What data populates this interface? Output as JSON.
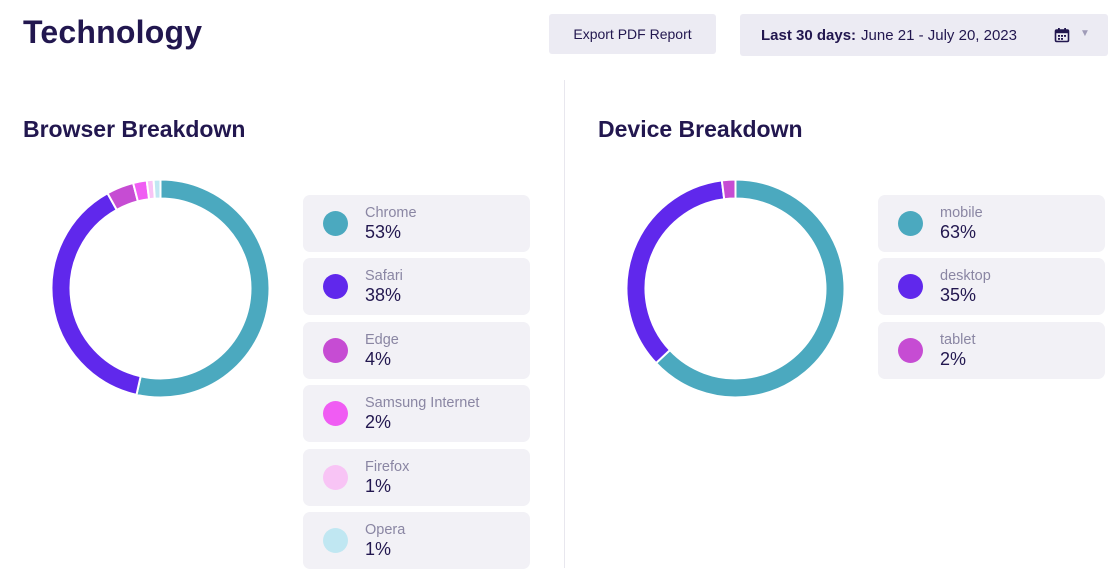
{
  "page": {
    "title": "Technology"
  },
  "toolbar": {
    "export_label": "Export PDF Report",
    "date_range": {
      "label": "Last 30 days:",
      "value": "June 21 - July 20, 2023"
    }
  },
  "icons": {
    "calendar": "calendar-icon",
    "dropdown": "caret-down-icon"
  },
  "browser": {
    "title": "Browser Breakdown",
    "items": [
      {
        "name": "Chrome",
        "value": "53%",
        "color": "#4ba9bf"
      },
      {
        "name": "Safari",
        "value": "38%",
        "color": "#6028ec"
      },
      {
        "name": "Edge",
        "value": "4%",
        "color": "#c64cd3"
      },
      {
        "name": "Samsung Internet",
        "value": "2%",
        "color": "#f05cf3"
      },
      {
        "name": "Firefox",
        "value": "1%",
        "color": "#f8c4f5"
      },
      {
        "name": "Opera",
        "value": "1%",
        "color": "#c0e7f2"
      }
    ]
  },
  "device": {
    "title": "Device Breakdown",
    "items": [
      {
        "name": "mobile",
        "value": "63%",
        "color": "#4ba9bf"
      },
      {
        "name": "desktop",
        "value": "35%",
        "color": "#6028ec"
      },
      {
        "name": "tablet",
        "value": "2%",
        "color": "#c64cd3"
      }
    ]
  },
  "chart_data": [
    {
      "type": "pie",
      "title": "Browser Breakdown",
      "categories": [
        "Chrome",
        "Safari",
        "Edge",
        "Samsung Internet",
        "Firefox",
        "Opera"
      ],
      "values": [
        53,
        38,
        4,
        2,
        1,
        1
      ],
      "colors": [
        "#4ba9bf",
        "#6028ec",
        "#c64cd3",
        "#f05cf3",
        "#f8c4f5",
        "#c0e7f2"
      ],
      "style": "donut",
      "legend": "right"
    },
    {
      "type": "pie",
      "title": "Device Breakdown",
      "categories": [
        "mobile",
        "desktop",
        "tablet"
      ],
      "values": [
        63,
        35,
        2
      ],
      "colors": [
        "#4ba9bf",
        "#6028ec",
        "#c64cd3"
      ],
      "style": "donut",
      "legend": "right"
    }
  ]
}
